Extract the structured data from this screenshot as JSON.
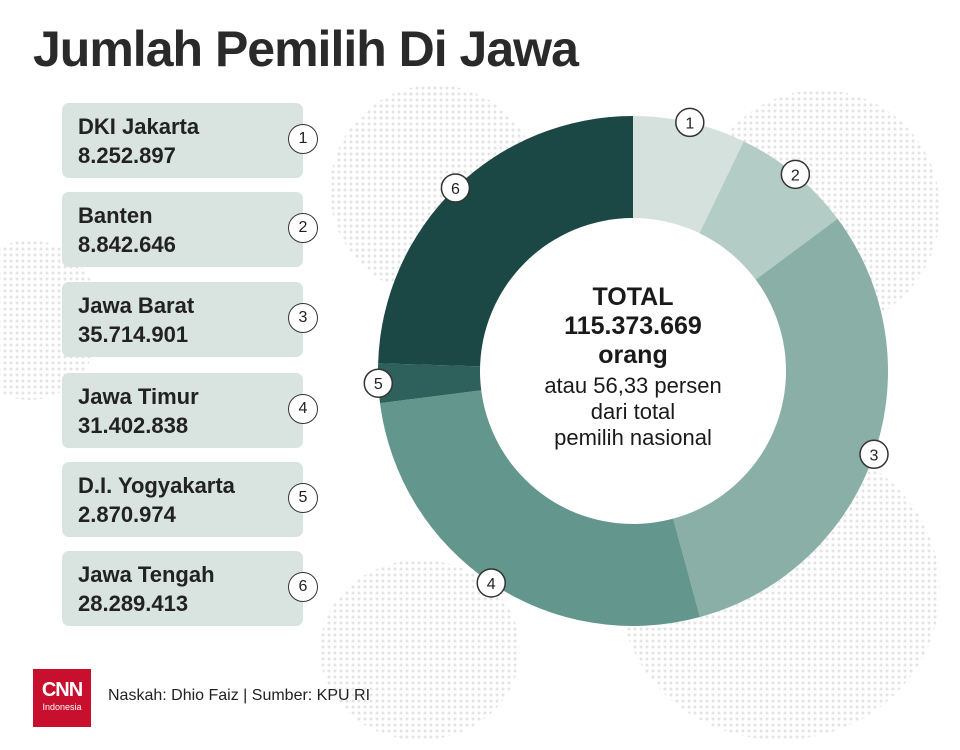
{
  "title": "Jumlah Pemilih Di Jawa",
  "legend": [
    {
      "num": "1",
      "name": "DKI Jakarta",
      "value": "8.252.897"
    },
    {
      "num": "2",
      "name": "Banten",
      "value": "8.842.646"
    },
    {
      "num": "3",
      "name": "Jawa Barat",
      "value": "35.714.901"
    },
    {
      "num": "4",
      "name": "Jawa Timur",
      "value": "31.402.838"
    },
    {
      "num": "5",
      "name": "D.I. Yogyakarta",
      "value": "2.870.974"
    },
    {
      "num": "6",
      "name": "Jawa Tengah",
      "value": "28.289.413"
    }
  ],
  "center": {
    "line1": "TOTAL",
    "line2": "115.373.669",
    "line3": "orang",
    "line4": "atau 56,33 persen",
    "line5": "dari total",
    "line6": "pemilih nasional"
  },
  "chart_data": {
    "type": "pie",
    "categories": [
      "DKI Jakarta",
      "Banten",
      "Jawa Barat",
      "Jawa Timur",
      "D.I. Yogyakarta",
      "Jawa Tengah"
    ],
    "labels": [
      "1",
      "2",
      "3",
      "4",
      "5",
      "6"
    ],
    "values": [
      8252897,
      8842646,
      35714901,
      31402838,
      2870974,
      28289413
    ],
    "colors": [
      "#d5e1dd",
      "#b4ccc6",
      "#8aafa7",
      "#63978d",
      "#2e605c",
      "#1b4745"
    ],
    "donut": true
  },
  "footer": {
    "logo_big": "CNN",
    "logo_small": "Indonesia",
    "credit": "Naskah: Dhio Faiz | Sumber: KPU RI"
  }
}
